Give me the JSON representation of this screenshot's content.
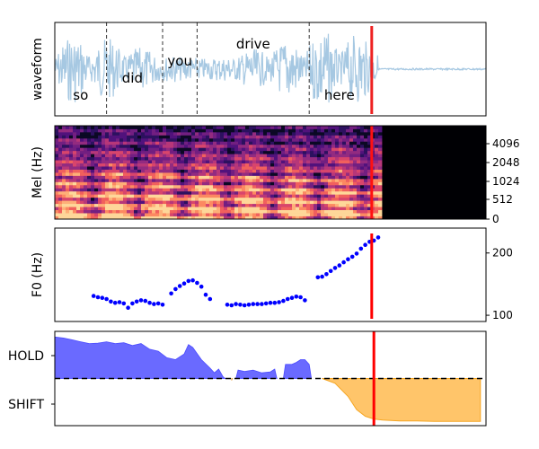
{
  "chart_data": [
    {
      "type": "line",
      "panel": "waveform",
      "ylabel": "waveform",
      "ticks": "none",
      "words": [
        {
          "text": "so",
          "t": 0.06
        },
        {
          "text": "did",
          "t": 0.18
        },
        {
          "text": "you",
          "t": 0.29
        },
        {
          "text": "drive",
          "t": 0.46
        },
        {
          "text": "here",
          "t": 0.66
        }
      ],
      "word_boundaries": [
        0.12,
        0.25,
        0.33,
        0.59
      ],
      "speech_end": 0.75,
      "cursor": 0.735,
      "colors": {
        "waveform": "#a6c8e2",
        "cursor": "#ee2222",
        "boundary": "#333333"
      }
    },
    {
      "type": "heatmap",
      "panel": "mel",
      "ylabel": "Mel (Hz)",
      "yticks": [
        "0",
        "512",
        "1024",
        "2048",
        "4096"
      ],
      "speech_end": 0.76,
      "cursor": 0.735,
      "colormap": "magma"
    },
    {
      "type": "scatter",
      "panel": "f0",
      "ylabel": "F0 (Hz)",
      "yticks": [
        100,
        200
      ],
      "ylim": [
        90,
        240
      ],
      "cursor": 0.735,
      "colors": {
        "points": "#0000ff",
        "cursor": "#ff0000"
      },
      "points": [
        [
          0.09,
          131
        ],
        [
          0.1,
          129
        ],
        [
          0.11,
          128
        ],
        [
          0.12,
          126
        ],
        [
          0.13,
          122
        ],
        [
          0.14,
          120
        ],
        [
          0.15,
          121
        ],
        [
          0.16,
          119
        ],
        [
          0.17,
          112
        ],
        [
          0.18,
          119
        ],
        [
          0.19,
          122
        ],
        [
          0.2,
          124
        ],
        [
          0.21,
          123
        ],
        [
          0.22,
          120
        ],
        [
          0.23,
          118
        ],
        [
          0.24,
          119
        ],
        [
          0.25,
          117
        ],
        [
          0.27,
          135
        ],
        [
          0.28,
          142
        ],
        [
          0.29,
          147
        ],
        [
          0.3,
          151
        ],
        [
          0.31,
          155
        ],
        [
          0.32,
          156
        ],
        [
          0.33,
          152
        ],
        [
          0.34,
          146
        ],
        [
          0.35,
          133
        ],
        [
          0.36,
          126
        ],
        [
          0.4,
          117
        ],
        [
          0.41,
          116
        ],
        [
          0.42,
          118
        ],
        [
          0.43,
          117
        ],
        [
          0.44,
          116
        ],
        [
          0.45,
          117
        ],
        [
          0.46,
          118
        ],
        [
          0.47,
          118
        ],
        [
          0.48,
          118
        ],
        [
          0.49,
          119
        ],
        [
          0.5,
          120
        ],
        [
          0.51,
          120
        ],
        [
          0.52,
          121
        ],
        [
          0.53,
          123
        ],
        [
          0.54,
          126
        ],
        [
          0.55,
          128
        ],
        [
          0.56,
          130
        ],
        [
          0.57,
          129
        ],
        [
          0.58,
          124
        ],
        [
          0.61,
          161
        ],
        [
          0.62,
          162
        ],
        [
          0.63,
          166
        ],
        [
          0.64,
          171
        ],
        [
          0.65,
          176
        ],
        [
          0.66,
          180
        ],
        [
          0.67,
          185
        ],
        [
          0.68,
          190
        ],
        [
          0.69,
          194
        ],
        [
          0.7,
          199
        ],
        [
          0.71,
          207
        ],
        [
          0.72,
          213
        ],
        [
          0.73,
          218
        ],
        [
          0.74,
          220
        ],
        [
          0.75,
          225
        ]
      ]
    },
    {
      "type": "area",
      "panel": "turn",
      "yticks": [
        "HOLD",
        "SHIFT"
      ],
      "ylim": [
        -1,
        1
      ],
      "cursor": 0.74,
      "colors": {
        "hold": "#6a6aff",
        "shift": "#ffc56a",
        "cursor": "#ff0000",
        "zero": "#000000"
      },
      "hold": [
        [
          0.0,
          0.88
        ],
        [
          0.02,
          0.86
        ],
        [
          0.04,
          0.82
        ],
        [
          0.06,
          0.78
        ],
        [
          0.08,
          0.74
        ],
        [
          0.1,
          0.75
        ],
        [
          0.12,
          0.78
        ],
        [
          0.14,
          0.74
        ],
        [
          0.16,
          0.76
        ],
        [
          0.18,
          0.7
        ],
        [
          0.2,
          0.74
        ],
        [
          0.22,
          0.62
        ],
        [
          0.24,
          0.58
        ],
        [
          0.26,
          0.44
        ],
        [
          0.28,
          0.4
        ],
        [
          0.3,
          0.52
        ],
        [
          0.31,
          0.72
        ],
        [
          0.32,
          0.66
        ],
        [
          0.34,
          0.4
        ],
        [
          0.36,
          0.22
        ],
        [
          0.37,
          0.12
        ],
        [
          0.38,
          0.2
        ],
        [
          0.39,
          0.04
        ],
        [
          0.395,
          0.0
        ],
        [
          0.41,
          -0.04
        ],
        [
          0.412,
          0.0
        ],
        [
          0.42,
          0.0
        ],
        [
          0.425,
          0.18
        ],
        [
          0.44,
          0.15
        ],
        [
          0.46,
          0.18
        ],
        [
          0.48,
          0.12
        ],
        [
          0.5,
          0.14
        ],
        [
          0.51,
          0.2
        ],
        [
          0.515,
          0.0
        ],
        [
          0.53,
          0.0
        ],
        [
          0.535,
          0.3
        ],
        [
          0.55,
          0.3
        ],
        [
          0.56,
          0.34
        ],
        [
          0.57,
          0.4
        ],
        [
          0.58,
          0.4
        ],
        [
          0.59,
          0.3
        ],
        [
          0.595,
          0.0
        ]
      ],
      "shift": [
        [
          0.62,
          0.0
        ],
        [
          0.65,
          -0.1
        ],
        [
          0.68,
          -0.38
        ],
        [
          0.7,
          -0.66
        ],
        [
          0.72,
          -0.8
        ],
        [
          0.74,
          -0.86
        ],
        [
          0.76,
          -0.88
        ],
        [
          0.8,
          -0.9
        ],
        [
          0.84,
          -0.9
        ],
        [
          0.88,
          -0.91
        ],
        [
          0.92,
          -0.91
        ],
        [
          0.96,
          -0.91
        ],
        [
          0.987,
          -0.91
        ]
      ]
    }
  ]
}
